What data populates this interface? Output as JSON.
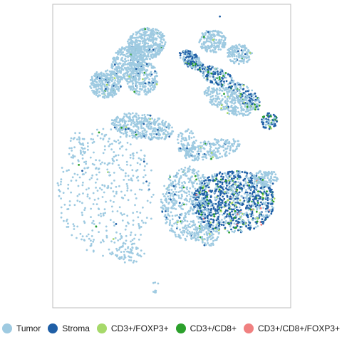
{
  "chart_data": {
    "type": "scatter",
    "title": "",
    "xlabel": "",
    "ylabel": "",
    "xlim": [
      0,
      100
    ],
    "ylim": [
      0,
      100
    ],
    "grid": false,
    "legend_position": "bottom",
    "series": [
      {
        "name": "Tumor",
        "color": "#9ecae1"
      },
      {
        "name": "Stroma",
        "color": "#1f5fa6"
      },
      {
        "name": "CD3+/FOXP3+",
        "color": "#a6d96a"
      },
      {
        "name": "CD3+/CD8+",
        "color": "#2ca02c"
      },
      {
        "name": "CD3+/CD8+/FOXP3+",
        "color": "#f08080"
      }
    ]
  }
}
